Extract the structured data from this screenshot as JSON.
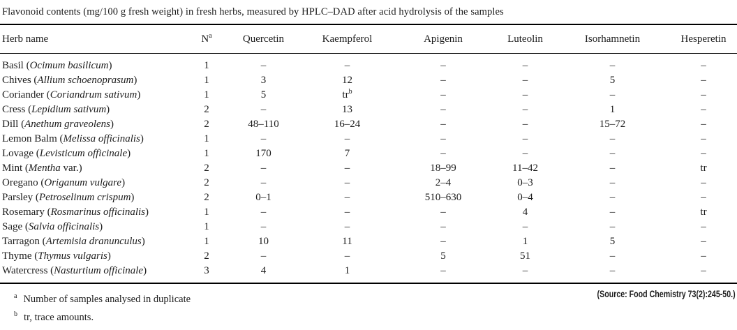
{
  "title": "Flavonoid contents (mg/100 g fresh weight) in fresh herbs, measured by HPLC–DAD after acid hydrolysis of the samples",
  "table": {
    "columns": [
      {
        "label": "Herb name",
        "sup": ""
      },
      {
        "label": "N",
        "sup": "a"
      },
      {
        "label": "Quercetin",
        "sup": ""
      },
      {
        "label": "Kaempferol",
        "sup": ""
      },
      {
        "label": "Apigenin",
        "sup": ""
      },
      {
        "label": "Luteolin",
        "sup": ""
      },
      {
        "label": "Isorhamnetin",
        "sup": ""
      },
      {
        "label": "Hesperetin",
        "sup": ""
      }
    ],
    "rows": [
      {
        "common": "Basil",
        "latin": "Ocimum basilicum",
        "post": "",
        "n": "1",
        "values": [
          "–",
          "–",
          "–",
          "–",
          "–",
          "–"
        ]
      },
      {
        "common": "Chives",
        "latin": "Allium schoenoprasum",
        "post": "",
        "n": "1",
        "values": [
          "3",
          "12",
          "–",
          "–",
          "5",
          "–"
        ]
      },
      {
        "common": "Coriander",
        "latin": "Coriandrum sativum",
        "post": "",
        "n": "1",
        "values": [
          "5",
          "tr^b",
          "–",
          "–",
          "–",
          "–"
        ]
      },
      {
        "common": "Cress",
        "latin": "Lepidium sativum",
        "post": "",
        "n": "2",
        "values": [
          "–",
          "13",
          "–",
          "–",
          "1",
          "–"
        ]
      },
      {
        "common": "Dill",
        "latin": "Anethum graveolens",
        "post": "",
        "n": "2",
        "values": [
          "48–110",
          "16–24",
          "–",
          "–",
          "15–72",
          "–"
        ]
      },
      {
        "common": "Lemon Balm",
        "latin": "Melissa officinalis",
        "post": "",
        "n": "1",
        "values": [
          "–",
          "–",
          "–",
          "–",
          "–",
          "–"
        ]
      },
      {
        "common": "Lovage",
        "latin": "Levisticum officinale",
        "post": "",
        "n": "1",
        "values": [
          "170",
          "7",
          "–",
          "–",
          "–",
          "–"
        ]
      },
      {
        "common": "Mint",
        "latin": "Mentha",
        "post": " var.",
        "n": "2",
        "values": [
          "–",
          "–",
          "18–99",
          "11–42",
          "–",
          "tr"
        ]
      },
      {
        "common": "Oregano",
        "latin": "Origanum vulgare",
        "post": "",
        "n": "2",
        "values": [
          "–",
          "–",
          "2–4",
          "0–3",
          "–",
          "–"
        ]
      },
      {
        "common": "Parsley",
        "latin": "Petroselinum crispum",
        "post": "",
        "n": "2",
        "values": [
          "0–1",
          "–",
          "510–630",
          "0–4",
          "–",
          "–"
        ]
      },
      {
        "common": "Rosemary",
        "latin": "Rosmarinus officinalis",
        "post": "",
        "n": "1",
        "values": [
          "–",
          "–",
          "–",
          "4",
          "–",
          "tr"
        ]
      },
      {
        "common": "Sage",
        "latin": "Salvia officinalis",
        "post": "",
        "n": "1",
        "values": [
          "–",
          "–",
          "–",
          "–",
          "–",
          "–"
        ]
      },
      {
        "common": "Tarragon",
        "latin": "Artemisia dranunculus",
        "post": "",
        "n": "1",
        "values": [
          "10",
          "11",
          "–",
          "1",
          "5",
          "–"
        ]
      },
      {
        "common": "Thyme",
        "latin": "Thymus vulgaris",
        "post": "",
        "n": "2",
        "values": [
          "–",
          "–",
          "5",
          "51",
          "–",
          "–"
        ]
      },
      {
        "common": "Watercress",
        "latin": "Nasturtium officinale",
        "post": "",
        "n": "3",
        "values": [
          "4",
          "1",
          "–",
          "–",
          "–",
          "–"
        ]
      }
    ]
  },
  "footnotes": [
    {
      "sup": "a",
      "text": "Number of samples analysed in duplicate"
    },
    {
      "sup": "b",
      "text": "tr, trace amounts."
    }
  ],
  "source": "(Source: Food Chemistry 73(2):245-50.)",
  "colors": {
    "text": "#1c1c1c",
    "rule": "#000000",
    "background": "#ffffff"
  }
}
